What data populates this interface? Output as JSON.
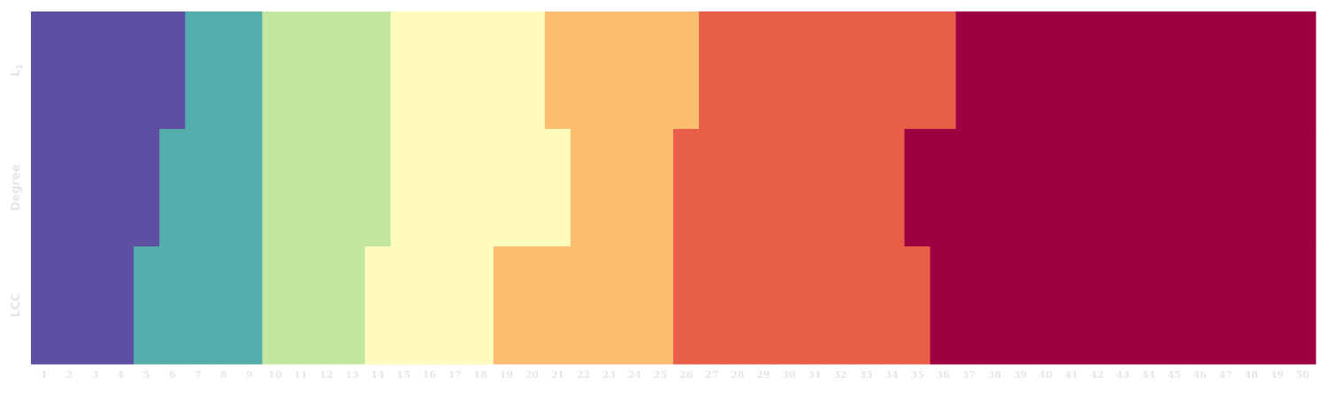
{
  "chart_data": {
    "type": "heatmap",
    "title": "",
    "xlabel": "",
    "ylabel": "",
    "x": [
      1,
      2,
      3,
      4,
      5,
      6,
      7,
      8,
      9,
      10,
      11,
      12,
      13,
      14,
      15,
      16,
      17,
      18,
      19,
      20,
      21,
      22,
      23,
      24,
      25,
      26,
      27,
      28,
      29,
      30,
      31,
      32,
      33,
      34,
      35,
      36,
      37,
      38,
      39,
      40,
      41,
      42,
      43,
      44,
      45,
      46,
      47,
      48,
      49,
      50
    ],
    "x_tick_labels": [
      "1",
      "2",
      "3",
      "4",
      "5",
      "6",
      "7",
      "8",
      "9",
      "10",
      "11",
      "12",
      "13",
      "14",
      "15",
      "16",
      "17",
      "18",
      "19",
      "20",
      "21",
      "22",
      "23",
      "24",
      "25",
      "26",
      "27",
      "28",
      "29",
      "30",
      "31",
      "32",
      "33",
      "34",
      "35",
      "36",
      "37",
      "38",
      "39",
      "40",
      "41",
      "42",
      "43",
      "44",
      "45",
      "46",
      "47",
      "48",
      "49",
      "50"
    ],
    "rows": [
      {
        "label": "L",
        "label_subscript": "1",
        "values": [
          0,
          0,
          0,
          0,
          0,
          0,
          1,
          1,
          1,
          2,
          2,
          2,
          2,
          2,
          3,
          3,
          3,
          3,
          3,
          3,
          4,
          4,
          4,
          4,
          4,
          4,
          5,
          5,
          5,
          5,
          5,
          5,
          5,
          5,
          5,
          5,
          6,
          6,
          6,
          6,
          6,
          6,
          6,
          6,
          6,
          6,
          6,
          6,
          6,
          6
        ]
      },
      {
        "label": "Degree",
        "label_subscript": "",
        "values": [
          0,
          0,
          0,
          0,
          0,
          1,
          1,
          1,
          1,
          2,
          2,
          2,
          2,
          2,
          3,
          3,
          3,
          3,
          3,
          3,
          3,
          4,
          4,
          4,
          4,
          5,
          5,
          5,
          5,
          5,
          5,
          5,
          5,
          5,
          6,
          6,
          6,
          6,
          6,
          6,
          6,
          6,
          6,
          6,
          6,
          6,
          6,
          6,
          6,
          6
        ]
      },
      {
        "label": "LCC",
        "label_subscript": "",
        "values": [
          0,
          0,
          0,
          0,
          1,
          1,
          1,
          1,
          1,
          2,
          2,
          2,
          2,
          3,
          3,
          3,
          3,
          3,
          4,
          4,
          4,
          4,
          4,
          4,
          4,
          5,
          5,
          5,
          5,
          5,
          5,
          5,
          5,
          5,
          5,
          6,
          6,
          6,
          6,
          6,
          6,
          6,
          6,
          6,
          6,
          6,
          6,
          6,
          6,
          6
        ]
      }
    ],
    "colors": [
      "#5e4fa2",
      "#54aeae",
      "#c3e6a0",
      "#fefbbd",
      "#fbbd6f",
      "#e85e49",
      "#9e0142"
    ],
    "grid": false,
    "legend": "none"
  }
}
